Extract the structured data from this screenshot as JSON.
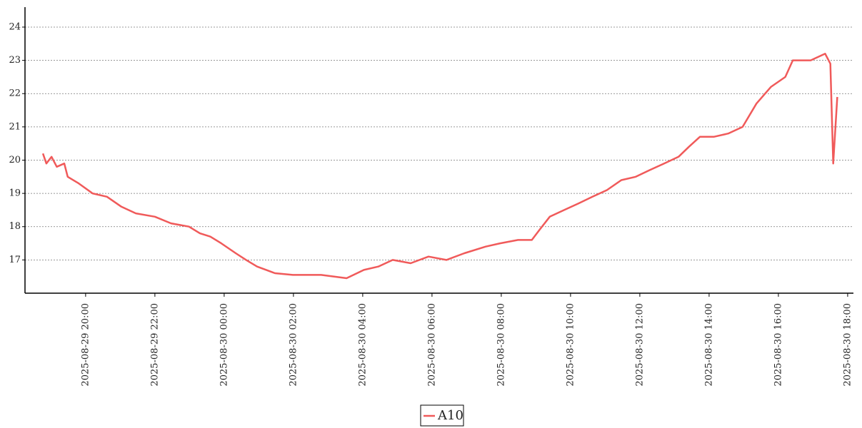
{
  "chart_data": {
    "type": "line",
    "x": [
      "2025-08-29 18:46",
      "2025-08-29 18:52",
      "2025-08-29 19:01",
      "2025-08-29 19:10",
      "2025-08-29 19:23",
      "2025-08-29 19:29",
      "2025-08-29 19:48",
      "2025-08-29 20:12",
      "2025-08-29 20:37",
      "2025-08-29 21:02",
      "2025-08-29 21:27",
      "2025-08-29 22:00",
      "2025-08-29 22:28",
      "2025-08-29 22:59",
      "2025-08-29 23:18",
      "2025-08-29 23:36",
      "2025-08-29 23:55",
      "2025-08-30 00:20",
      "2025-08-30 00:38",
      "2025-08-30 00:57",
      "2025-08-30 01:28",
      "2025-08-30 01:59",
      "2025-08-30 02:48",
      "2025-08-30 03:32",
      "2025-08-30 04:02",
      "2025-08-30 04:27",
      "2025-08-30 04:52",
      "2025-08-30 05:23",
      "2025-08-30 05:54",
      "2025-08-30 06:25",
      "2025-08-30 06:56",
      "2025-08-30 07:33",
      "2025-08-30 07:58",
      "2025-08-30 08:29",
      "2025-08-30 08:53",
      "2025-08-30 09:06",
      "2025-08-30 09:24",
      "2025-08-30 09:49",
      "2025-08-30 10:14",
      "2025-08-30 10:38",
      "2025-08-30 11:03",
      "2025-08-30 11:28",
      "2025-08-30 11:53",
      "2025-08-30 12:17",
      "2025-08-30 12:42",
      "2025-08-30 13:07",
      "2025-08-30 13:25",
      "2025-08-30 13:44",
      "2025-08-30 14:08",
      "2025-08-30 14:33",
      "2025-08-30 14:58",
      "2025-08-30 15:22",
      "2025-08-30 15:47",
      "2025-08-30 16:12",
      "2025-08-30 16:25",
      "2025-08-30 16:56",
      "2025-08-30 17:21",
      "2025-08-30 17:30",
      "2025-08-30 17:35",
      "2025-08-30 17:42"
    ],
    "series": [
      {
        "name": "A10",
        "color": "#f05a5a",
        "values": [
          20.2,
          19.9,
          20.1,
          19.8,
          19.9,
          19.5,
          19.3,
          19.0,
          18.9,
          18.6,
          18.4,
          18.3,
          18.1,
          18.0,
          17.8,
          17.7,
          17.5,
          17.2,
          17.0,
          16.8,
          16.6,
          16.55,
          16.55,
          16.45,
          16.7,
          16.8,
          17.0,
          16.9,
          17.1,
          17.0,
          17.2,
          17.4,
          17.5,
          17.6,
          17.6,
          17.9,
          18.3,
          18.5,
          18.7,
          18.9,
          19.1,
          19.4,
          19.5,
          19.7,
          19.9,
          20.1,
          20.4,
          20.7,
          20.7,
          20.8,
          21.0,
          21.7,
          22.2,
          22.5,
          23.0,
          23.0,
          23.2,
          22.9,
          19.9,
          21.9
        ]
      }
    ],
    "xlim": [
      "2025-08-29 18:15",
      "2025-08-30 18:10"
    ],
    "xticks": [
      "2025-08-29 20:00",
      "2025-08-29 22:00",
      "2025-08-30 00:00",
      "2025-08-30 02:00",
      "2025-08-30 04:00",
      "2025-08-30 06:00",
      "2025-08-30 08:00",
      "2025-08-30 10:00",
      "2025-08-30 12:00",
      "2025-08-30 14:00",
      "2025-08-30 16:00",
      "2025-08-30 18:00"
    ],
    "ylim": [
      16,
      24.6
    ],
    "yticks": [
      17,
      18,
      19,
      20,
      21,
      22,
      23,
      24
    ],
    "grid": true,
    "legend": "bottom"
  }
}
